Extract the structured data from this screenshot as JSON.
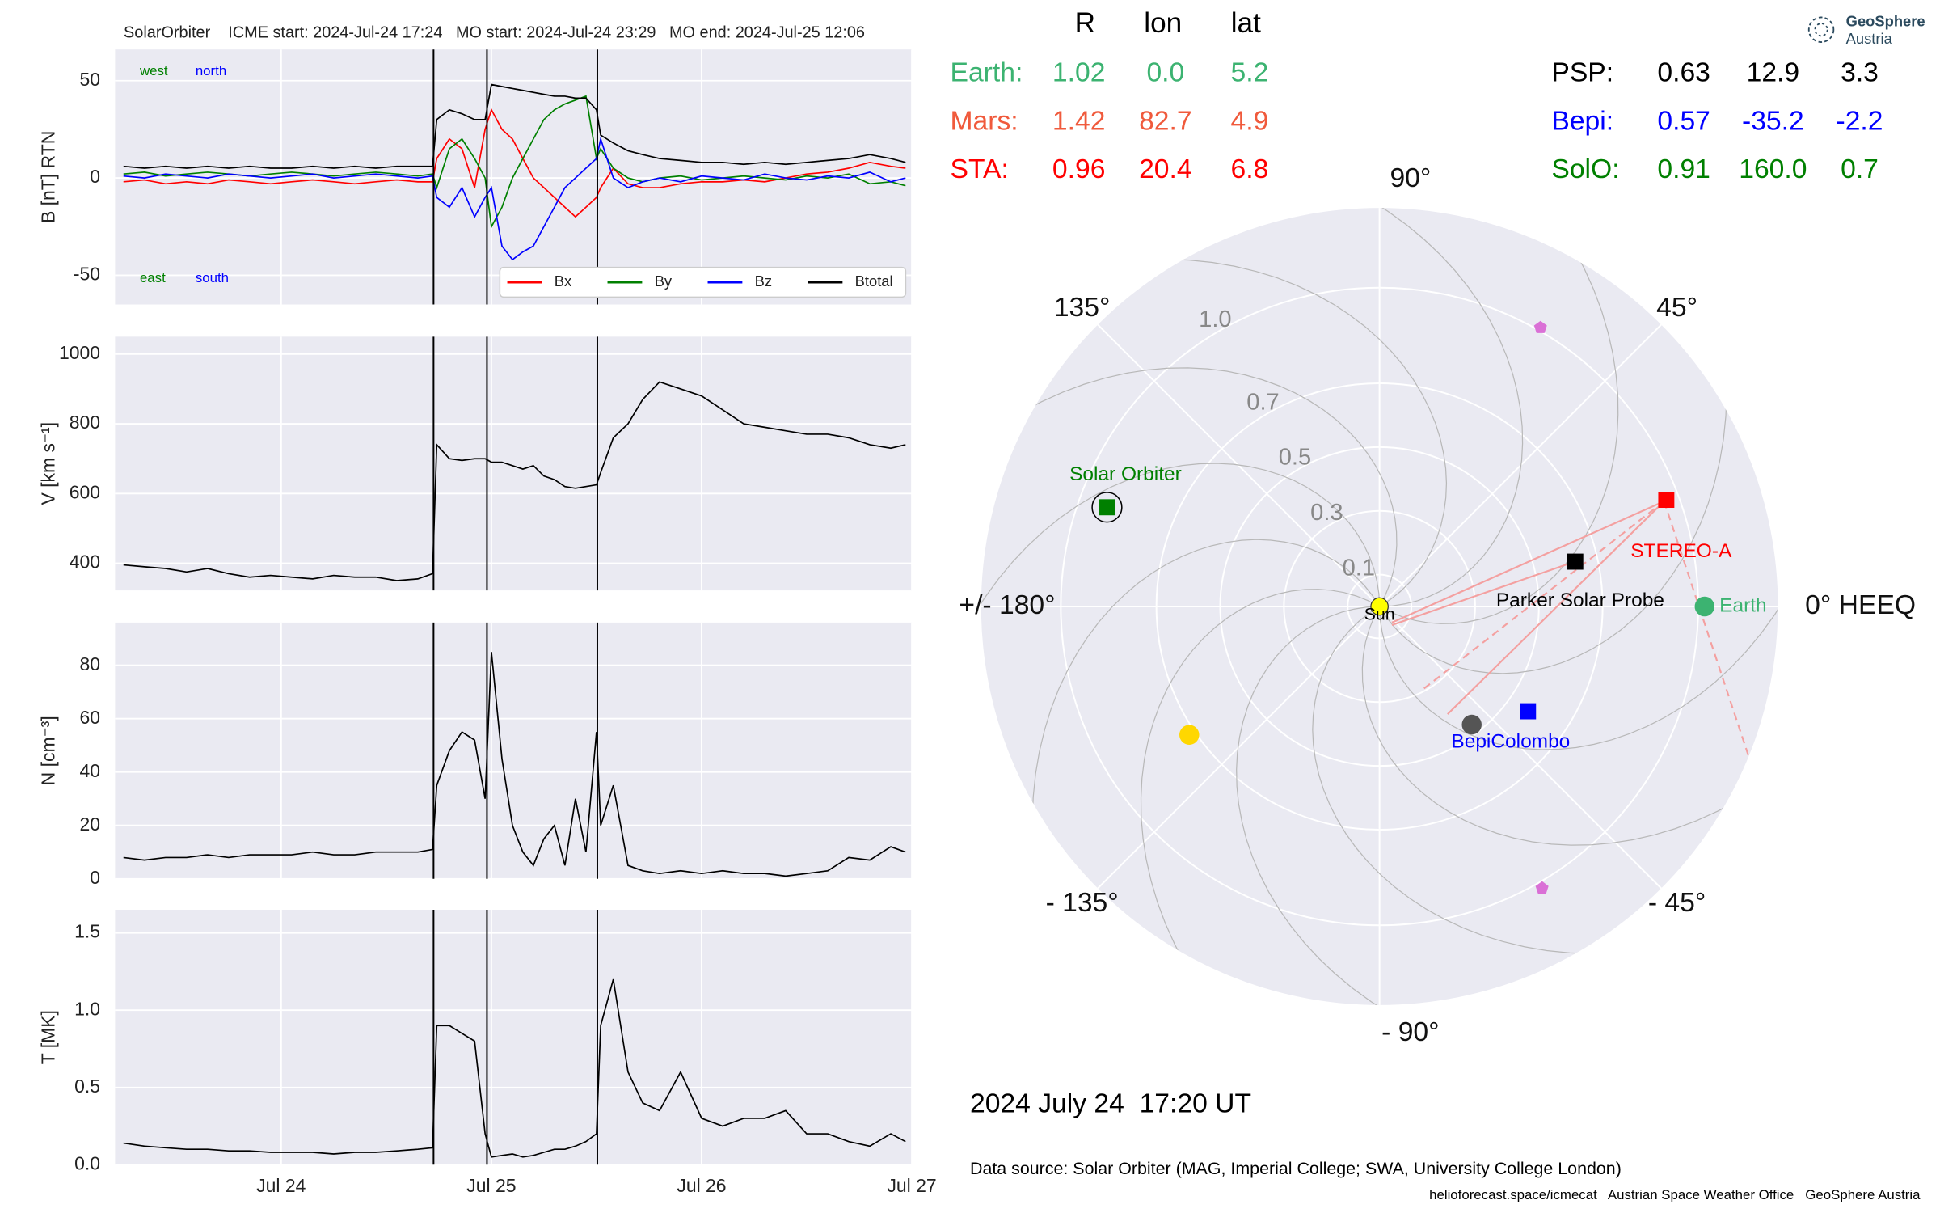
{
  "chart_data": [
    {
      "type": "line",
      "title": "SolarOrbiter    ICME start: 2024-Jul-24 17:24   MO start: 2024-Jul-24 23:29   MO end: 2024-Jul-25 12:06",
      "y_label": "B [nT] RTN",
      "x": [
        23.25,
        23.35,
        23.45,
        23.55,
        23.65,
        23.75,
        23.85,
        23.95,
        24.05,
        24.15,
        24.25,
        24.35,
        24.45,
        24.55,
        24.65,
        24.72,
        24.74,
        24.8,
        24.86,
        24.92,
        24.97,
        25.0,
        25.05,
        25.1,
        25.15,
        25.2,
        25.25,
        25.3,
        25.35,
        25.4,
        25.45,
        25.5,
        25.52,
        25.58,
        25.65,
        25.72,
        25.8,
        25.9,
        26.0,
        26.1,
        26.2,
        26.3,
        26.4,
        26.5,
        26.6,
        26.7,
        26.8,
        26.9,
        26.97
      ],
      "series": [
        {
          "name": "Bx",
          "color": "#ff0000",
          "values": [
            -2,
            -1,
            -3,
            -2,
            -3,
            -1,
            -2,
            -3,
            -2,
            -1,
            -2,
            -3,
            -2,
            -1,
            -2,
            -2,
            10,
            20,
            15,
            -5,
            25,
            35,
            25,
            20,
            10,
            0,
            -5,
            -10,
            -15,
            -20,
            -15,
            -10,
            -5,
            5,
            -3,
            -5,
            -5,
            -3,
            -2,
            -2,
            -1,
            -2,
            0,
            2,
            3,
            5,
            8,
            6,
            5
          ]
        },
        {
          "name": "By",
          "color": "#008000",
          "values": [
            2,
            3,
            1,
            2,
            3,
            2,
            1,
            2,
            3,
            2,
            1,
            2,
            3,
            2,
            1,
            2,
            -5,
            15,
            20,
            10,
            0,
            -25,
            -15,
            0,
            10,
            20,
            30,
            35,
            38,
            40,
            42,
            10,
            15,
            5,
            0,
            -2,
            0,
            1,
            -1,
            0,
            1,
            0,
            -1,
            1,
            0,
            2,
            -3,
            -2,
            -4
          ]
        },
        {
          "name": "Bz",
          "color": "#0000ff",
          "values": [
            1,
            0,
            2,
            1,
            0,
            2,
            1,
            0,
            1,
            2,
            0,
            1,
            2,
            1,
            0,
            1,
            -10,
            -15,
            -5,
            -20,
            -10,
            -5,
            -35,
            -42,
            -38,
            -35,
            -25,
            -15,
            -5,
            0,
            5,
            10,
            20,
            0,
            -5,
            -2,
            0,
            -2,
            1,
            0,
            -1,
            2,
            0,
            -1,
            1,
            0,
            3,
            -2,
            0
          ]
        },
        {
          "name": "Btotal",
          "color": "#000000",
          "values": [
            6,
            5,
            6,
            5,
            6,
            5,
            6,
            5,
            5,
            6,
            5,
            6,
            5,
            6,
            6,
            6,
            30,
            35,
            33,
            30,
            30,
            48,
            47,
            46,
            45,
            44,
            43,
            42,
            42,
            41,
            41,
            35,
            22,
            18,
            14,
            12,
            10,
            9,
            8,
            8,
            7,
            8,
            7,
            8,
            9,
            10,
            12,
            10,
            8
          ]
        }
      ],
      "xlim": [
        23.21,
        27
      ],
      "ylim": [
        -65,
        66
      ],
      "yticks": [
        -50,
        0,
        50
      ],
      "event_x": [
        24.725,
        24.979,
        25.504
      ],
      "annotations": [
        {
          "text": "west",
          "color": "#008000"
        },
        {
          "text": "north",
          "color": "#0000ff"
        },
        {
          "text": "east",
          "color": "#008000"
        },
        {
          "text": "south",
          "color": "#0000ff"
        }
      ],
      "grid": true,
      "legend": "lower right"
    },
    {
      "type": "line",
      "y_label": "V [km s⁻¹]",
      "x": [
        23.25,
        23.35,
        23.45,
        23.55,
        23.65,
        23.75,
        23.85,
        23.95,
        24.05,
        24.15,
        24.25,
        24.35,
        24.45,
        24.55,
        24.65,
        24.72,
        24.74,
        24.8,
        24.86,
        24.92,
        24.97,
        25.0,
        25.05,
        25.1,
        25.15,
        25.2,
        25.25,
        25.3,
        25.35,
        25.4,
        25.45,
        25.5,
        25.52,
        25.58,
        25.65,
        25.72,
        25.8,
        25.9,
        26.0,
        26.1,
        26.2,
        26.3,
        26.4,
        26.5,
        26.6,
        26.7,
        26.8,
        26.9,
        26.97
      ],
      "values": [
        395,
        390,
        385,
        375,
        385,
        370,
        360,
        365,
        360,
        355,
        365,
        360,
        360,
        350,
        355,
        370,
        740,
        700,
        695,
        700,
        700,
        690,
        690,
        680,
        670,
        680,
        650,
        640,
        620,
        615,
        620,
        625,
        660,
        760,
        800,
        870,
        920,
        900,
        880,
        840,
        800,
        790,
        780,
        770,
        770,
        760,
        740,
        730,
        740
      ],
      "color": "#000000",
      "xlim": [
        23.21,
        27
      ],
      "ylim": [
        322,
        1050
      ],
      "yticks": [
        400,
        600,
        800,
        1000
      ],
      "grid": true
    },
    {
      "type": "line",
      "y_label": "N [cm⁻³]",
      "x": [
        23.25,
        23.35,
        23.45,
        23.55,
        23.65,
        23.75,
        23.85,
        23.95,
        24.05,
        24.15,
        24.25,
        24.35,
        24.45,
        24.55,
        24.65,
        24.72,
        24.74,
        24.8,
        24.86,
        24.92,
        24.97,
        25.0,
        25.05,
        25.1,
        25.15,
        25.2,
        25.25,
        25.3,
        25.35,
        25.4,
        25.45,
        25.5,
        25.52,
        25.58,
        25.65,
        25.72,
        25.8,
        25.9,
        26.0,
        26.1,
        26.2,
        26.3,
        26.4,
        26.5,
        26.6,
        26.7,
        26.8,
        26.9,
        26.97
      ],
      "values": [
        8,
        7,
        8,
        8,
        9,
        8,
        9,
        9,
        9,
        10,
        9,
        9,
        10,
        10,
        10,
        11,
        35,
        48,
        55,
        52,
        30,
        85,
        45,
        20,
        10,
        5,
        15,
        20,
        5,
        30,
        10,
        55,
        20,
        35,
        5,
        3,
        2,
        3,
        2,
        3,
        2,
        2,
        1,
        2,
        3,
        8,
        7,
        12,
        10
      ],
      "color": "#000000",
      "xlim": [
        23.21,
        27
      ],
      "ylim": [
        0,
        96
      ],
      "yticks": [
        0,
        20,
        40,
        60,
        80
      ],
      "grid": true
    },
    {
      "type": "line",
      "y_label": "T [MK]",
      "x": [
        23.25,
        23.35,
        23.45,
        23.55,
        23.65,
        23.75,
        23.85,
        23.95,
        24.05,
        24.15,
        24.25,
        24.35,
        24.45,
        24.55,
        24.65,
        24.72,
        24.74,
        24.8,
        24.86,
        24.92,
        24.97,
        25.0,
        25.05,
        25.1,
        25.15,
        25.2,
        25.25,
        25.3,
        25.35,
        25.4,
        25.45,
        25.5,
        25.52,
        25.58,
        25.65,
        25.72,
        25.8,
        25.9,
        26.0,
        26.1,
        26.2,
        26.3,
        26.4,
        26.5,
        26.6,
        26.7,
        26.8,
        26.9,
        26.97
      ],
      "values": [
        0.14,
        0.12,
        0.11,
        0.1,
        0.1,
        0.09,
        0.09,
        0.08,
        0.08,
        0.08,
        0.07,
        0.08,
        0.08,
        0.09,
        0.1,
        0.11,
        0.9,
        0.9,
        0.85,
        0.8,
        0.2,
        0.05,
        0.06,
        0.07,
        0.05,
        0.06,
        0.08,
        0.1,
        0.1,
        0.12,
        0.15,
        0.2,
        0.9,
        1.2,
        0.6,
        0.4,
        0.35,
        0.6,
        0.3,
        0.25,
        0.3,
        0.3,
        0.35,
        0.2,
        0.2,
        0.15,
        0.12,
        0.2,
        0.15
      ],
      "color": "#000000",
      "xlim": [
        23.21,
        27
      ],
      "ylim": [
        0,
        1.65
      ],
      "yticks": [
        {
          "value": 0,
          "label": "0.0"
        },
        {
          "value": 0.5,
          "label": "0.5"
        },
        {
          "value": 1,
          "label": "1.0"
        },
        {
          "value": 1.5,
          "label": "1.5"
        }
      ],
      "xticks": [
        {
          "value": 24,
          "label": "Jul 24"
        },
        {
          "value": 25,
          "label": "Jul 25"
        },
        {
          "value": 26,
          "label": "Jul 26"
        },
        {
          "value": 27,
          "label": "Jul 27"
        }
      ],
      "grid": true
    },
    {
      "type": "polar",
      "columns": [
        "R",
        "lon",
        "lat"
      ],
      "bodies": [
        {
          "name": "Earth:",
          "label": "Earth",
          "color": "#3cb371",
          "marker": "circle",
          "values": [
            1.02,
            0,
            5.2
          ],
          "value_labels": [
            "1.02",
            "0.0",
            "5.2"
          ]
        },
        {
          "name": "Mars:",
          "color": "#f05a3c",
          "marker": "circle",
          "values": [
            1.42,
            82.7,
            4.9
          ],
          "value_labels": [
            "1.42",
            "82.7",
            "4.9"
          ]
        },
        {
          "name": "STA:",
          "label": "STEREO-A",
          "color": "#ff0000",
          "marker": "square",
          "values": [
            0.96,
            20.4,
            6.8
          ],
          "value_labels": [
            "0.96",
            "20.4",
            "6.8"
          ]
        },
        {
          "name": "PSP:",
          "label": "Parker Solar Probe",
          "color": "#000000",
          "marker": "square",
          "values": [
            0.63,
            12.9,
            3.3
          ],
          "value_labels": [
            "0.63",
            "12.9",
            "3.3"
          ]
        },
        {
          "name": "Bepi:",
          "label": "BepiColombo",
          "color": "#0000ff",
          "marker": "square",
          "values": [
            0.57,
            -35.2,
            -2.2
          ],
          "value_labels": [
            "0.57",
            "-35.2",
            "-2.2"
          ]
        },
        {
          "name": "SolO:",
          "label": "Solar Orbiter",
          "color": "#008000",
          "marker": "square",
          "ring": true,
          "values": [
            0.91,
            160,
            0.7
          ],
          "value_labels": [
            "0.91",
            "160.0",
            "0.7"
          ]
        }
      ],
      "others": [
        {
          "lon": -146,
          "r": 0.72,
          "color": "#ffd700",
          "marker": "circle"
        },
        {
          "lon": -52,
          "r": 0.47,
          "color": "#555555",
          "marker": "circle"
        },
        {
          "lon": 60,
          "r": 1.01,
          "color": "#da70d6",
          "marker": "pentagon"
        },
        {
          "lon": -60,
          "r": 1.02,
          "color": "#da70d6",
          "marker": "pentagon"
        }
      ],
      "sun": {
        "label": "Sun",
        "color": "#ffff00"
      },
      "rlim": [
        0,
        1.25
      ],
      "rticks": [
        0.1,
        0.3,
        0.5,
        0.7,
        {
          "value": 1,
          "label": "1.0"
        }
      ],
      "thetaticks": [
        {
          "value": 0,
          "label": "0° HEEQ"
        },
        {
          "value": 45,
          "label": "45°"
        },
        {
          "value": 90,
          "label": "90°"
        },
        {
          "value": 135,
          "label": "135°"
        },
        {
          "value": 180,
          "label": "+/- 180°"
        },
        {
          "value": -135,
          "label": "- 135°"
        },
        {
          "value": -90,
          "label": "- 90°"
        },
        {
          "value": -45,
          "label": "- 45°"
        }
      ],
      "date": "2024 July 24  17:20 UT",
      "source": "Data source: Solar Orbiter (MAG, Imperial College; SWA, University College London)"
    }
  ],
  "footer": "helioforecast.space/icmecat   Austrian Space Weather Office   GeoSphere Austria",
  "logo": [
    "GeoSphere",
    "Austria"
  ]
}
